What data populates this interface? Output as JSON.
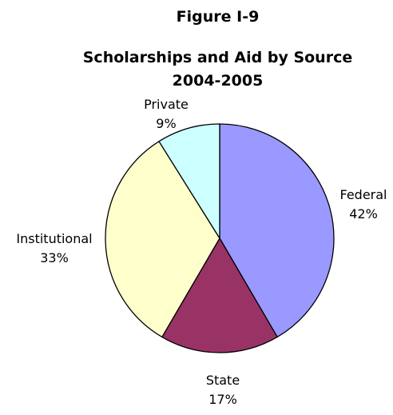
{
  "figure_label": "Figure I-9",
  "chart_data": {
    "type": "pie",
    "title": "Scholarships and Aid by Source",
    "subtitle": "2004-2005",
    "slices": [
      {
        "label": "Federal",
        "value": 42,
        "value_label": "42%",
        "color": "#9999ff"
      },
      {
        "label": "State",
        "value": 17,
        "value_label": "17%",
        "color": "#993366"
      },
      {
        "label": "Institutional",
        "value": 33,
        "value_label": "33%",
        "color": "#ffffcc"
      },
      {
        "label": "Private",
        "value": 9,
        "value_label": "9%",
        "color": "#ccffff"
      }
    ],
    "start_angle_deg": 0,
    "direction": "clockwise",
    "legend": "none"
  }
}
